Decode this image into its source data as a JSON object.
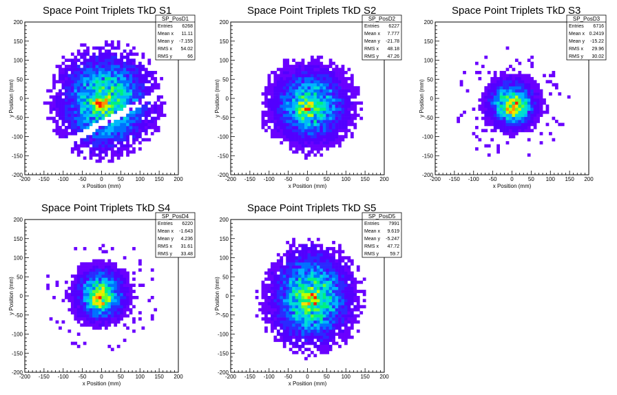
{
  "chart_data": [
    {
      "type": "heatmap",
      "title": "Space Point Triplets TkD S1",
      "xlabel": "x Position (mm)",
      "ylabel": "y Position (mm)",
      "xlim": [
        -200,
        200
      ],
      "ylim": [
        -200,
        200
      ],
      "xticks": [
        "-200",
        "-150",
        "-100",
        "-50",
        "0",
        "50",
        "100",
        "150",
        "200"
      ],
      "yticks": [
        "-200",
        "-150",
        "-100",
        "-50",
        "0",
        "50",
        "100",
        "150",
        "200"
      ],
      "stats": {
        "name": "SP_PosD1",
        "rows": [
          [
            "Entries",
            "6268"
          ],
          [
            "Mean x",
            "11.11"
          ],
          [
            "Mean y",
            "-7.155"
          ],
          [
            "RMS x",
            "54.02"
          ],
          [
            "RMS y",
            "66"
          ]
        ]
      },
      "shape": {
        "cx": 11,
        "cy": -7,
        "sx": 62,
        "sy": 66,
        "r": 150,
        "core_x": 0,
        "core_y": -15,
        "band": true
      }
    },
    {
      "type": "heatmap",
      "title": "Space Point Triplets TkD S2",
      "xlabel": "x Position (mm)",
      "ylabel": "y Position (mm)",
      "xlim": [
        -200,
        200
      ],
      "ylim": [
        -200,
        200
      ],
      "xticks": [
        "-200",
        "-150",
        "-100",
        "-50",
        "0",
        "50",
        "100",
        "150",
        "200"
      ],
      "yticks": [
        "-200",
        "-150",
        "-100",
        "-50",
        "0",
        "50",
        "100",
        "150",
        "200"
      ],
      "stats": {
        "name": "SP_PosD2",
        "rows": [
          [
            "Entries",
            "6227"
          ],
          [
            "Mean x",
            "7.777"
          ],
          [
            "Mean y",
            "-21.78"
          ],
          [
            "RMS x",
            "48.18"
          ],
          [
            "RMS y",
            "47.26"
          ]
        ]
      },
      "shape": {
        "cx": 8,
        "cy": -18,
        "sx": 52,
        "sy": 50,
        "r": 140,
        "core_x": -3,
        "core_y": -30,
        "band": false
      }
    },
    {
      "type": "heatmap",
      "title": "Space Point Triplets TkD S3",
      "xlabel": "x Position (mm)",
      "ylabel": "y Position (mm)",
      "xlim": [
        -200,
        200
      ],
      "ylim": [
        -200,
        200
      ],
      "xticks": [
        "-200",
        "-150",
        "-100",
        "-50",
        "0",
        "50",
        "100",
        "150",
        "200"
      ],
      "yticks": [
        "-200",
        "-150",
        "-100",
        "-50",
        "0",
        "50",
        "100",
        "150",
        "200"
      ],
      "stats": {
        "name": "SP_PosD3",
        "rows": [
          [
            "Entries",
            "6716"
          ],
          [
            "Mean x",
            "0.2419"
          ],
          [
            "Mean y",
            "-15.22"
          ],
          [
            "RMS x",
            "29.96"
          ],
          [
            "RMS y",
            "30.02"
          ]
        ]
      },
      "shape": {
        "cx": 0,
        "cy": -15,
        "sx": 33,
        "sy": 33,
        "r": 150,
        "core_x": 0,
        "core_y": -20,
        "band": false
      }
    },
    {
      "type": "heatmap",
      "title": "Space Point Triplets TkD S4",
      "xlabel": "x Position (mm)",
      "ylabel": "y Position (mm)",
      "xlim": [
        -200,
        200
      ],
      "ylim": [
        -200,
        200
      ],
      "xticks": [
        "-200",
        "-150",
        "-100",
        "-50",
        "0",
        "50",
        "100",
        "150",
        "200"
      ],
      "yticks": [
        "-200",
        "-150",
        "-100",
        "-50",
        "0",
        "50",
        "100",
        "150",
        "200"
      ],
      "stats": {
        "name": "SP_PosD4",
        "rows": [
          [
            "Entries",
            "6220"
          ],
          [
            "Mean x",
            "-1.643"
          ],
          [
            "Mean y",
            "4.236"
          ],
          [
            "RMS x",
            "31.61"
          ],
          [
            "RMS y",
            "33.48"
          ]
        ]
      },
      "shape": {
        "cx": -2,
        "cy": 4,
        "sx": 34,
        "sy": 36,
        "r": 150,
        "core_x": -3,
        "core_y": -10,
        "band": false
      }
    },
    {
      "type": "heatmap",
      "title": "Space Point Triplets TkD S5",
      "xlabel": "x Position (mm)",
      "ylabel": "y Position (mm)",
      "xlim": [
        -200,
        200
      ],
      "ylim": [
        -200,
        200
      ],
      "xticks": [
        "-200",
        "-150",
        "-100",
        "-50",
        "0",
        "50",
        "100",
        "150",
        "200"
      ],
      "yticks": [
        "-200",
        "-150",
        "-100",
        "-50",
        "0",
        "50",
        "100",
        "150",
        "200"
      ],
      "stats": {
        "name": "SP_PosD5",
        "rows": [
          [
            "Entries",
            "7991"
          ],
          [
            "Mean x",
            "9.619"
          ],
          [
            "Mean y",
            "-5.247"
          ],
          [
            "RMS x",
            "47.72"
          ],
          [
            "RMS y",
            "59.7"
          ]
        ]
      },
      "shape": {
        "cx": 10,
        "cy": -5,
        "sx": 52,
        "sy": 62,
        "r": 150,
        "core_x": 10,
        "core_y": -10,
        "band": false
      }
    }
  ],
  "colors": {
    "palette": [
      "#6a00ff",
      "#5200ff",
      "#2a2aff",
      "#0070ff",
      "#00b4ff",
      "#00e0d0",
      "#00f080",
      "#60ff30",
      "#c0ff00",
      "#ffe000",
      "#ff9000",
      "#ff2000"
    ],
    "frame": "#000000",
    "background": "#ffffff"
  }
}
